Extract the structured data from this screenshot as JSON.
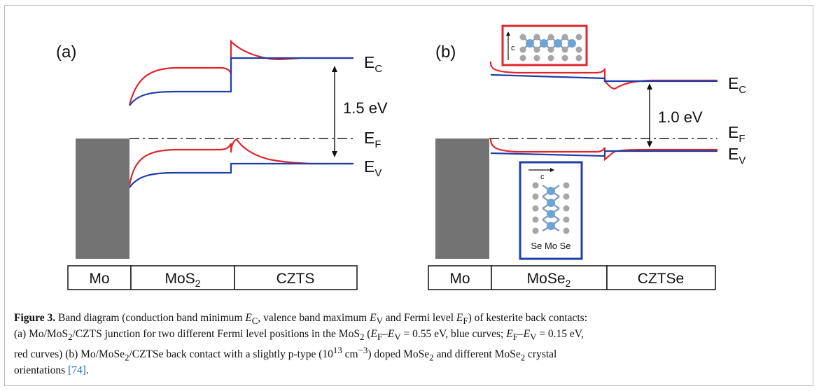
{
  "panels": {
    "a": {
      "label": "(a)",
      "ec_label": "E",
      "ec_sub": "C",
      "ef_label": "E",
      "ef_sub": "F",
      "ev_label": "E",
      "ev_sub": "V",
      "gap_label": "1.5 eV",
      "layers": {
        "left": "Mo",
        "mid_main": "MoS",
        "mid_sub": "2",
        "right": "CZTS"
      }
    },
    "b": {
      "label": "(b)",
      "ec_label": "E",
      "ec_sub": "C",
      "ef_label": "E",
      "ef_sub": "F",
      "ev_label": "E",
      "ev_sub": "V",
      "gap_label": "1.0 eV",
      "layers": {
        "left": "Mo",
        "mid_main": "MoSe",
        "mid_sub": "2",
        "right": "CZTSe"
      },
      "inset_top_axis": "c",
      "inset_bottom_axis": "c",
      "inset_bottom_atoms": "Se Mo Se"
    }
  },
  "colors": {
    "blue_curve": "#1f3fa8",
    "red_curve": "#e0252b",
    "metal": "#737373",
    "atom_blue": "#6fa3d6",
    "atom_gray": "#a6a6a6"
  },
  "caption": {
    "fig": "Figure 3.",
    "t1": " Band diagram (conduction band minimum ",
    "ec": "E",
    "ec_sub": "C",
    "t2": ", valence band maximum ",
    "ev": "E",
    "ev_sub": "V",
    "t3": " and Fermi level ",
    "ef": "E",
    "ef_sub": "F",
    "t4": ") of kesterite back contacts:",
    "l2a": "(a) Mo/MoS",
    "l2b": "/CZTS junction for two different Fermi level positions in the MoS",
    "sub2": "2",
    "l2c": " (",
    "l2d": " = 0.55 eV, blue curves; ",
    "l2e": " = 0.15 eV,",
    "l3a": "red curves) (b) Mo/MoSe",
    "l3b": "/CZTSe back contact with a slightly p-type (10",
    "sup13": "13",
    "cm": " cm",
    "supm3": "−3",
    "l3c": ") doped MoSe",
    "l3d": " and different MoSe",
    "l3e": " crystal",
    "l4a": "orientations ",
    "ref": "[74]",
    "l4b": "."
  }
}
